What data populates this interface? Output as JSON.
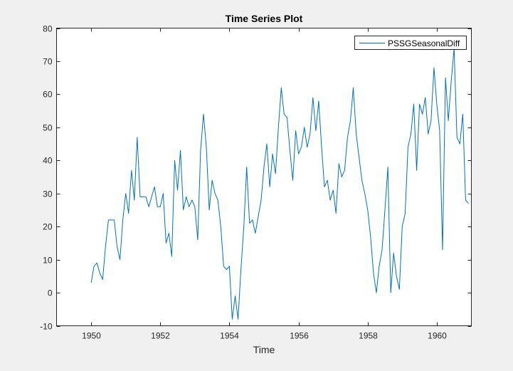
{
  "chart_data": {
    "type": "line",
    "title": "Time Series Plot",
    "xlabel": "Time",
    "ylabel": "",
    "xlim": [
      1949,
      1961
    ],
    "ylim": [
      -10,
      80
    ],
    "xticks": [
      1950,
      1952,
      1954,
      1956,
      1958,
      1960
    ],
    "yticks": [
      -10,
      0,
      10,
      20,
      30,
      40,
      50,
      60,
      70,
      80
    ],
    "grid": false,
    "legend_position": "top-right",
    "series": [
      {
        "name": "PSSGSeasonalDiff",
        "color": "#0072bd",
        "x": [
          1950.0,
          1950.083,
          1950.167,
          1950.25,
          1950.333,
          1950.417,
          1950.5,
          1950.583,
          1950.667,
          1950.75,
          1950.833,
          1950.917,
          1951.0,
          1951.083,
          1951.167,
          1951.25,
          1951.333,
          1951.417,
          1951.5,
          1951.583,
          1951.667,
          1951.75,
          1951.833,
          1951.917,
          1952.0,
          1952.083,
          1952.167,
          1952.25,
          1952.333,
          1952.417,
          1952.5,
          1952.583,
          1952.667,
          1952.75,
          1952.833,
          1952.917,
          1953.0,
          1953.083,
          1953.167,
          1953.25,
          1953.333,
          1953.417,
          1953.5,
          1953.583,
          1953.667,
          1953.75,
          1953.833,
          1953.917,
          1954.0,
          1954.083,
          1954.167,
          1954.25,
          1954.333,
          1954.417,
          1954.5,
          1954.583,
          1954.667,
          1954.75,
          1954.833,
          1954.917,
          1955.0,
          1955.083,
          1955.167,
          1955.25,
          1955.333,
          1955.417,
          1955.5,
          1955.583,
          1955.667,
          1955.75,
          1955.833,
          1955.917,
          1956.0,
          1956.083,
          1956.167,
          1956.25,
          1956.333,
          1956.417,
          1956.5,
          1956.583,
          1956.667,
          1956.75,
          1956.833,
          1956.917,
          1957.0,
          1957.083,
          1957.167,
          1957.25,
          1957.333,
          1957.417,
          1957.5,
          1957.583,
          1957.667,
          1957.75,
          1957.833,
          1957.917,
          1958.0,
          1958.083,
          1958.167,
          1958.25,
          1958.333,
          1958.417,
          1958.5,
          1958.583,
          1958.667,
          1958.75,
          1958.833,
          1958.917,
          1959.0,
          1959.083,
          1959.167,
          1959.25,
          1959.333,
          1959.417,
          1959.5,
          1959.583,
          1959.667,
          1959.75,
          1959.833,
          1959.917,
          1960.0,
          1960.083,
          1960.167,
          1960.25,
          1960.333,
          1960.417,
          1960.5,
          1960.583,
          1960.667,
          1960.75,
          1960.833,
          1960.917
        ],
        "y": [
          3,
          8,
          9,
          6,
          4,
          14,
          22,
          22,
          22,
          14,
          10,
          22,
          30,
          24,
          37,
          28,
          47,
          29,
          29,
          29,
          26,
          29,
          32,
          26,
          26,
          30,
          15,
          18,
          11,
          40,
          31,
          43,
          25,
          29,
          26,
          28,
          26,
          16,
          43,
          54,
          44,
          25,
          34,
          30,
          28,
          20,
          8,
          7,
          8,
          -8,
          -1,
          -8,
          7,
          20,
          38,
          21,
          22,
          18,
          23,
          28,
          38,
          45,
          32,
          42,
          36,
          50,
          62,
          54,
          53,
          43,
          34,
          49,
          42,
          44,
          50,
          44,
          48,
          59,
          49,
          58,
          44,
          32,
          34,
          28,
          31,
          24,
          39,
          35,
          37,
          47,
          52,
          62,
          48,
          41,
          34,
          30,
          25,
          17,
          6,
          0,
          8,
          13,
          25,
          38,
          0,
          12,
          5,
          1,
          20,
          24,
          44,
          48,
          57,
          37,
          57,
          54,
          59,
          48,
          52,
          68,
          57,
          49,
          13,
          65,
          52,
          64,
          74,
          47,
          45,
          54,
          28,
          27
        ]
      }
    ]
  }
}
